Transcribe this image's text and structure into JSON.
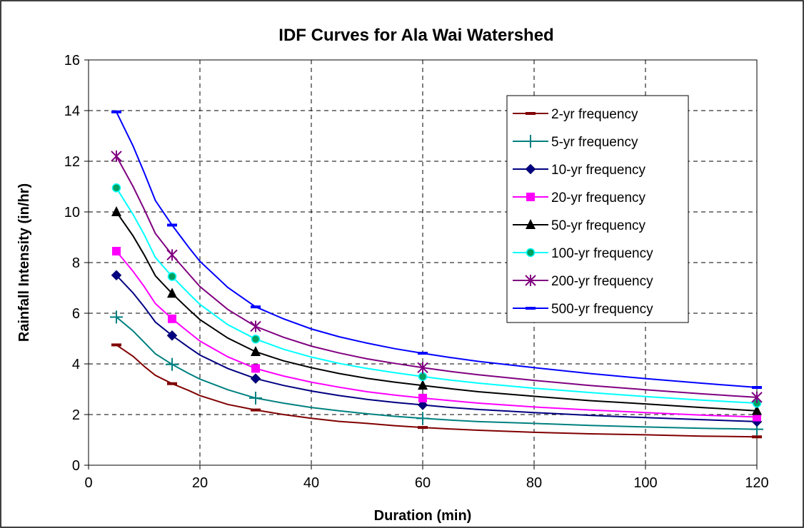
{
  "chart_data": {
    "type": "line",
    "title": "IDF Curves for Ala Wai Watershed",
    "xlabel": "Duration (min)",
    "ylabel": "Rainfall Intensity (in/hr)",
    "xlim": [
      0,
      120
    ],
    "ylim": [
      0,
      16
    ],
    "xticks": [
      0,
      20,
      40,
      60,
      80,
      100,
      120
    ],
    "yticks": [
      0,
      2,
      4,
      6,
      8,
      10,
      12,
      14,
      16
    ],
    "grid": true,
    "legend_position": "top-right",
    "marker_x": [
      5,
      15,
      30,
      60,
      120
    ],
    "series": [
      {
        "name": "2-yr frequency",
        "color": "#800000",
        "marker": "dash",
        "values": [
          4.75,
          3.22,
          2.18,
          1.49,
          1.12
        ],
        "curve": [
          [
            5,
            4.75
          ],
          [
            8,
            4.3
          ],
          [
            10,
            3.9
          ],
          [
            12,
            3.55
          ],
          [
            15,
            3.22
          ],
          [
            18,
            2.95
          ],
          [
            20,
            2.75
          ],
          [
            25,
            2.4
          ],
          [
            30,
            2.18
          ],
          [
            35,
            2.0
          ],
          [
            40,
            1.85
          ],
          [
            45,
            1.73
          ],
          [
            50,
            1.65
          ],
          [
            55,
            1.56
          ],
          [
            60,
            1.49
          ],
          [
            65,
            1.43
          ],
          [
            70,
            1.38
          ],
          [
            80,
            1.3
          ],
          [
            90,
            1.24
          ],
          [
            100,
            1.2
          ],
          [
            110,
            1.15
          ],
          [
            120,
            1.12
          ]
        ]
      },
      {
        "name": "5-yr frequency",
        "color": "#008080",
        "marker": "plus",
        "values": [
          5.85,
          3.98,
          2.65,
          1.85,
          1.42
        ],
        "curve": [
          [
            5,
            5.85
          ],
          [
            8,
            5.3
          ],
          [
            10,
            4.85
          ],
          [
            12,
            4.4
          ],
          [
            15,
            3.98
          ],
          [
            18,
            3.62
          ],
          [
            20,
            3.4
          ],
          [
            25,
            2.98
          ],
          [
            30,
            2.65
          ],
          [
            35,
            2.45
          ],
          [
            40,
            2.28
          ],
          [
            45,
            2.15
          ],
          [
            50,
            2.03
          ],
          [
            55,
            1.93
          ],
          [
            60,
            1.85
          ],
          [
            65,
            1.78
          ],
          [
            70,
            1.72
          ],
          [
            80,
            1.65
          ],
          [
            90,
            1.57
          ],
          [
            100,
            1.51
          ],
          [
            110,
            1.46
          ],
          [
            120,
            1.42
          ]
        ]
      },
      {
        "name": "10-yr frequency",
        "color": "#000080",
        "marker": "diamond",
        "values": [
          7.5,
          5.12,
          3.42,
          2.38,
          1.72
        ],
        "curve": [
          [
            5,
            7.5
          ],
          [
            8,
            6.8
          ],
          [
            10,
            6.25
          ],
          [
            12,
            5.65
          ],
          [
            15,
            5.12
          ],
          [
            18,
            4.65
          ],
          [
            20,
            4.35
          ],
          [
            25,
            3.82
          ],
          [
            30,
            3.42
          ],
          [
            35,
            3.15
          ],
          [
            40,
            2.93
          ],
          [
            45,
            2.75
          ],
          [
            50,
            2.6
          ],
          [
            55,
            2.48
          ],
          [
            60,
            2.38
          ],
          [
            65,
            2.28
          ],
          [
            70,
            2.2
          ],
          [
            80,
            2.08
          ],
          [
            90,
            1.97
          ],
          [
            100,
            1.88
          ],
          [
            110,
            1.8
          ],
          [
            120,
            1.72
          ]
        ]
      },
      {
        "name": "20-yr frequency",
        "color": "#ff00ff",
        "marker": "square",
        "values": [
          8.45,
          5.78,
          3.82,
          2.65,
          1.9
        ],
        "curve": [
          [
            5,
            8.45
          ],
          [
            8,
            7.65
          ],
          [
            10,
            7.05
          ],
          [
            12,
            6.38
          ],
          [
            15,
            5.78
          ],
          [
            18,
            5.25
          ],
          [
            20,
            4.9
          ],
          [
            25,
            4.28
          ],
          [
            30,
            3.82
          ],
          [
            35,
            3.52
          ],
          [
            40,
            3.28
          ],
          [
            45,
            3.08
          ],
          [
            50,
            2.9
          ],
          [
            55,
            2.77
          ],
          [
            60,
            2.65
          ],
          [
            65,
            2.55
          ],
          [
            70,
            2.45
          ],
          [
            80,
            2.3
          ],
          [
            90,
            2.18
          ],
          [
            100,
            2.08
          ],
          [
            110,
            1.98
          ],
          [
            120,
            1.9
          ]
        ]
      },
      {
        "name": "50-yr frequency",
        "color": "#000000",
        "marker": "triangle",
        "values": [
          10.0,
          6.78,
          4.48,
          3.15,
          2.15
        ],
        "curve": [
          [
            5,
            10.0
          ],
          [
            8,
            9.05
          ],
          [
            10,
            8.3
          ],
          [
            12,
            7.48
          ],
          [
            15,
            6.78
          ],
          [
            18,
            6.15
          ],
          [
            20,
            5.75
          ],
          [
            25,
            5.02
          ],
          [
            30,
            4.48
          ],
          [
            35,
            4.12
          ],
          [
            40,
            3.85
          ],
          [
            45,
            3.62
          ],
          [
            50,
            3.43
          ],
          [
            55,
            3.28
          ],
          [
            60,
            3.15
          ],
          [
            65,
            3.02
          ],
          [
            70,
            2.9
          ],
          [
            80,
            2.72
          ],
          [
            90,
            2.55
          ],
          [
            100,
            2.42
          ],
          [
            110,
            2.28
          ],
          [
            120,
            2.15
          ]
        ]
      },
      {
        "name": "100-yr frequency",
        "color": "#00ffff",
        "marker": "circle",
        "values": [
          10.95,
          7.45,
          4.98,
          3.5,
          2.45
        ],
        "curve": [
          [
            5,
            10.95
          ],
          [
            8,
            9.9
          ],
          [
            10,
            9.1
          ],
          [
            12,
            8.2
          ],
          [
            15,
            7.45
          ],
          [
            18,
            6.78
          ],
          [
            20,
            6.35
          ],
          [
            25,
            5.55
          ],
          [
            30,
            4.98
          ],
          [
            35,
            4.58
          ],
          [
            40,
            4.27
          ],
          [
            45,
            4.02
          ],
          [
            50,
            3.82
          ],
          [
            55,
            3.65
          ],
          [
            60,
            3.5
          ],
          [
            65,
            3.36
          ],
          [
            70,
            3.24
          ],
          [
            80,
            3.04
          ],
          [
            90,
            2.87
          ],
          [
            100,
            2.71
          ],
          [
            110,
            2.57
          ],
          [
            120,
            2.45
          ]
        ]
      },
      {
        "name": "200-yr frequency",
        "color": "#800080",
        "marker": "asterisk",
        "values": [
          12.2,
          8.3,
          5.48,
          3.85,
          2.68
        ],
        "curve": [
          [
            5,
            12.2
          ],
          [
            8,
            11.0
          ],
          [
            10,
            10.1
          ],
          [
            12,
            9.15
          ],
          [
            15,
            8.3
          ],
          [
            18,
            7.55
          ],
          [
            20,
            7.05
          ],
          [
            25,
            6.15
          ],
          [
            30,
            5.48
          ],
          [
            35,
            5.05
          ],
          [
            40,
            4.7
          ],
          [
            45,
            4.43
          ],
          [
            50,
            4.2
          ],
          [
            55,
            4.02
          ],
          [
            60,
            3.85
          ],
          [
            65,
            3.7
          ],
          [
            70,
            3.57
          ],
          [
            80,
            3.35
          ],
          [
            90,
            3.15
          ],
          [
            100,
            2.98
          ],
          [
            110,
            2.82
          ],
          [
            120,
            2.68
          ]
        ]
      },
      {
        "name": "500-yr frequency",
        "color": "#0000ff",
        "marker": "dash",
        "values": [
          13.95,
          9.48,
          6.25,
          4.42,
          3.07
        ],
        "curve": [
          [
            5,
            13.95
          ],
          [
            8,
            12.6
          ],
          [
            10,
            11.55
          ],
          [
            12,
            10.45
          ],
          [
            15,
            9.48
          ],
          [
            18,
            8.6
          ],
          [
            20,
            8.05
          ],
          [
            25,
            7.02
          ],
          [
            30,
            6.25
          ],
          [
            35,
            5.78
          ],
          [
            40,
            5.38
          ],
          [
            45,
            5.07
          ],
          [
            50,
            4.82
          ],
          [
            55,
            4.6
          ],
          [
            60,
            4.42
          ],
          [
            65,
            4.25
          ],
          [
            70,
            4.1
          ],
          [
            80,
            3.85
          ],
          [
            90,
            3.62
          ],
          [
            100,
            3.42
          ],
          [
            110,
            3.24
          ],
          [
            120,
            3.07
          ]
        ]
      }
    ]
  }
}
